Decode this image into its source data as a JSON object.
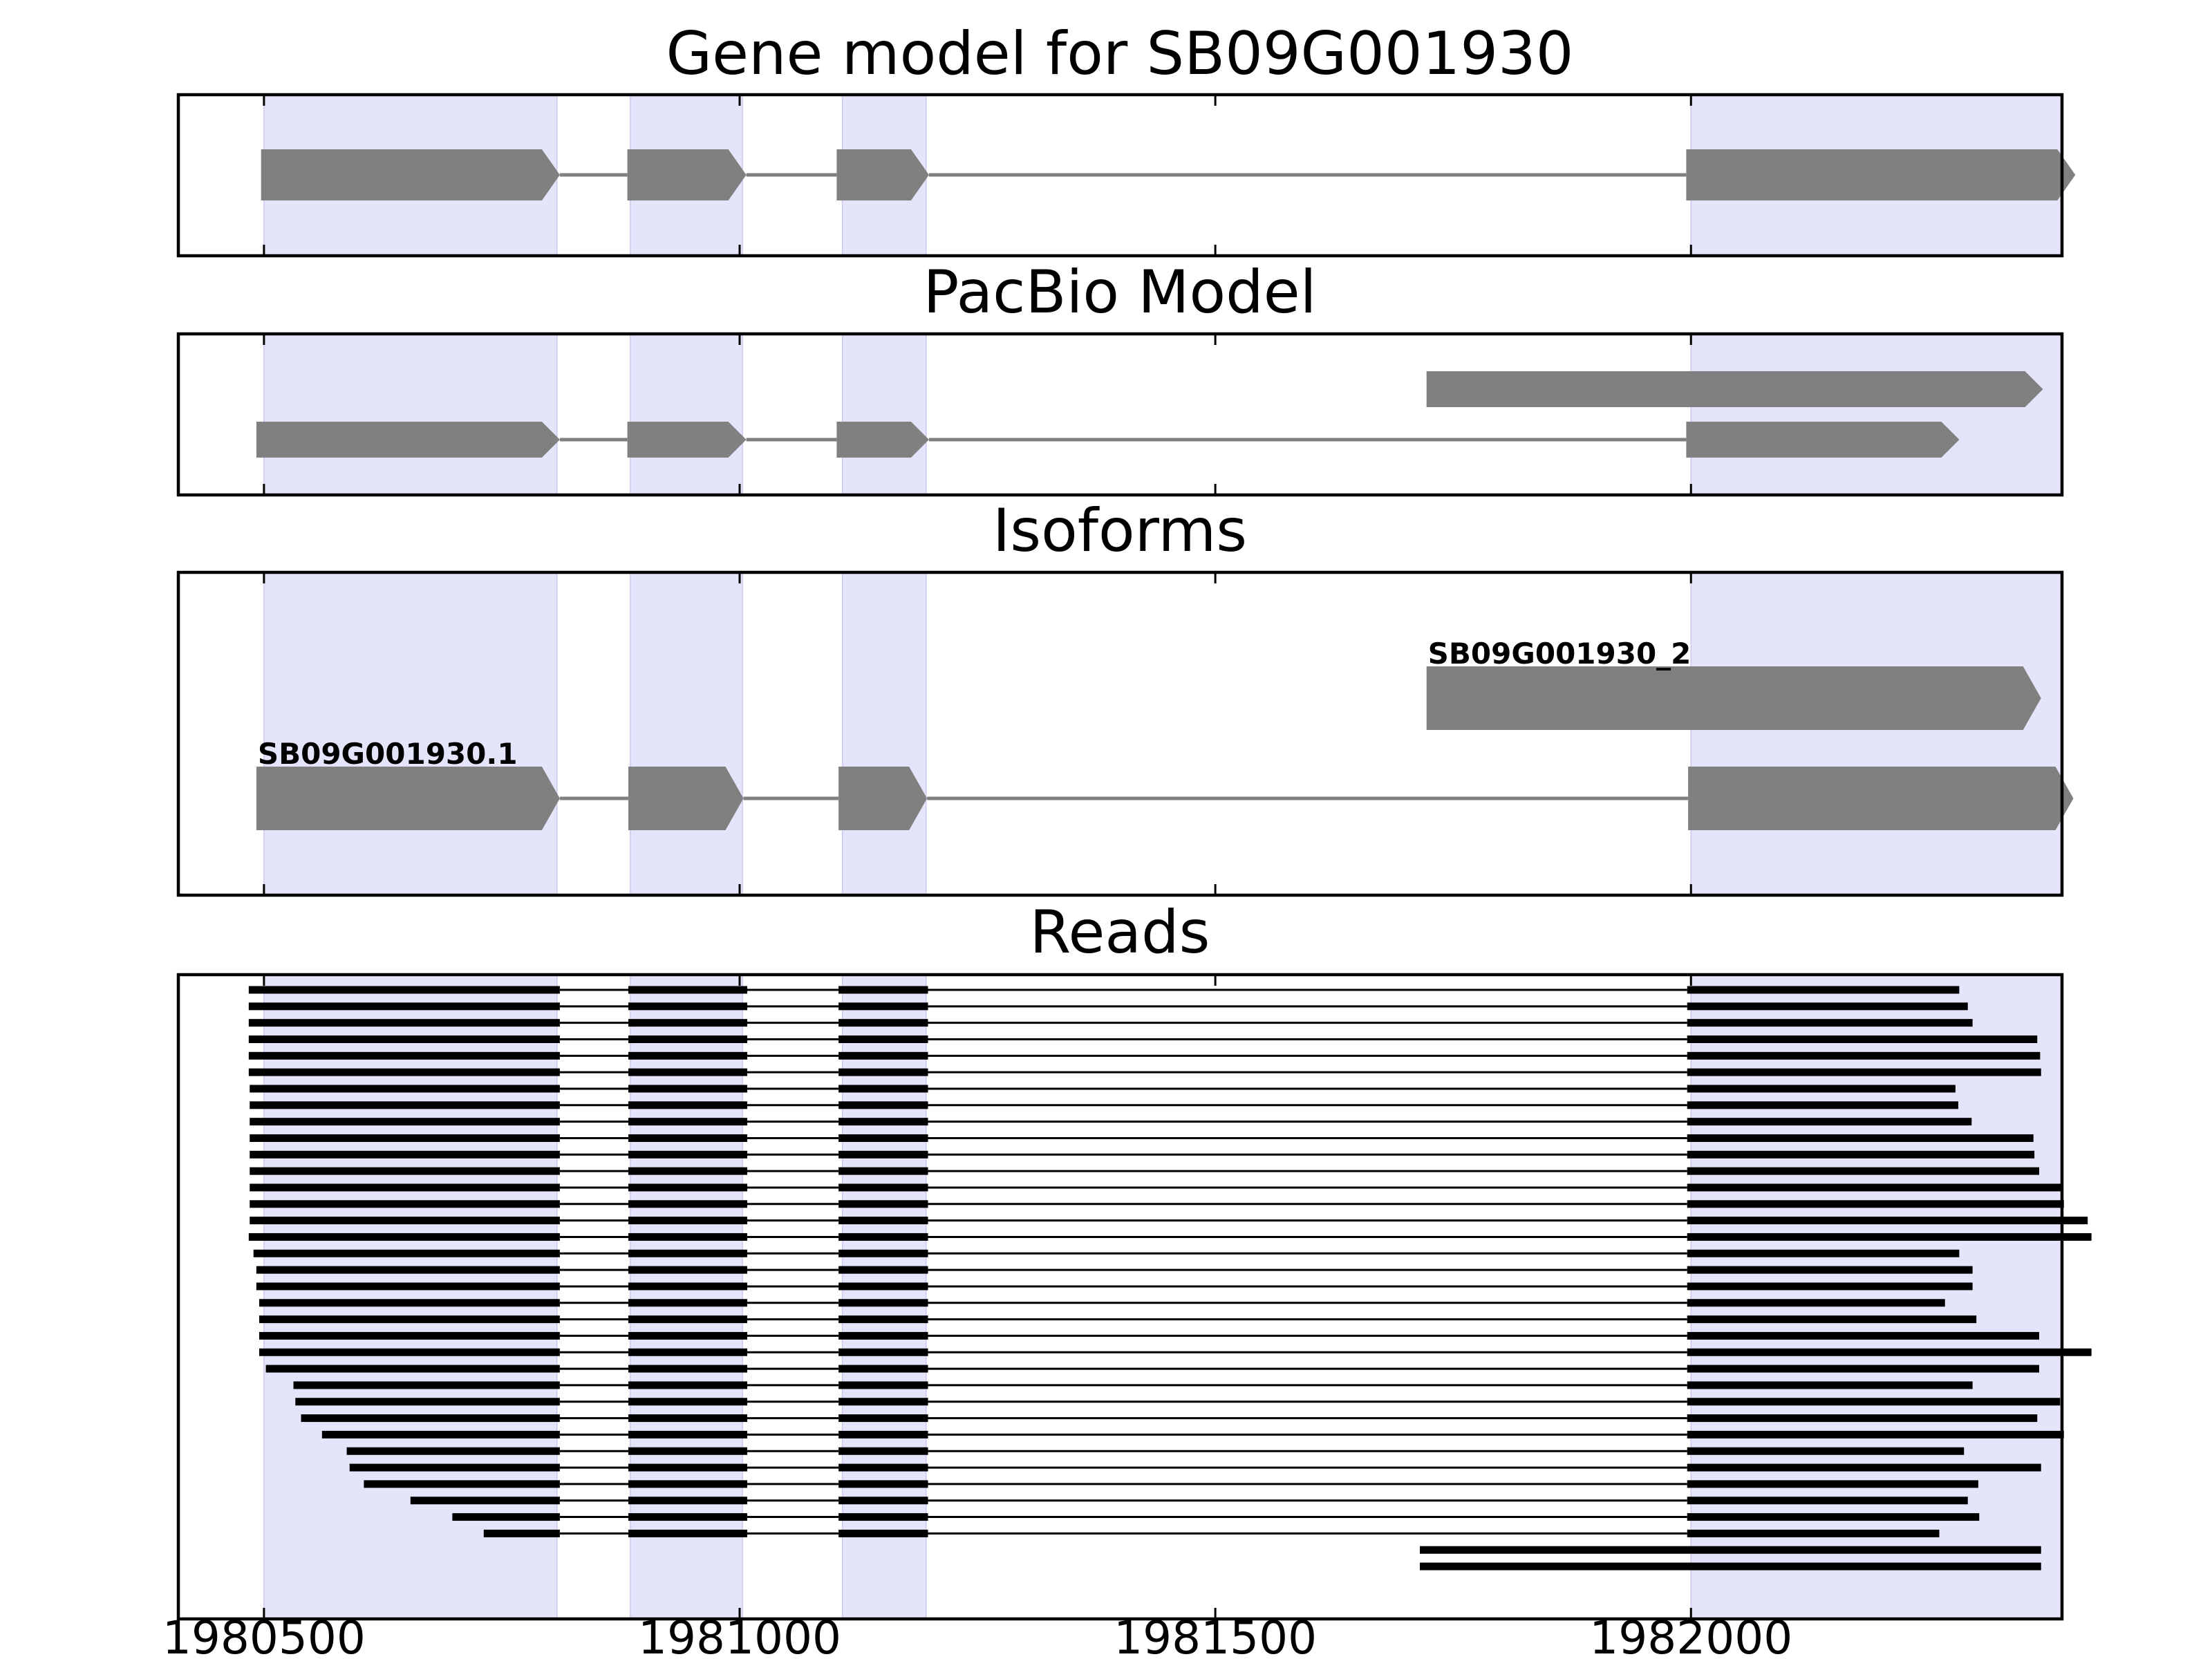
{
  "chart_data": {
    "type": "gene-track",
    "xlim": [
      1980410,
      1982390
    ],
    "x_ticks": [
      {
        "value": 1980500,
        "label": "1980500"
      },
      {
        "value": 1981000,
        "label": "1981000"
      },
      {
        "value": 1981500,
        "label": "1981500"
      },
      {
        "value": 1982000,
        "label": "1982000"
      }
    ],
    "highlight_color": "#e4e4fb",
    "feature_color": "#808080",
    "read_color": "#000000",
    "highlight_regions": [
      [
        1980500,
        1980808
      ],
      [
        1980885,
        1981003
      ],
      [
        1981108,
        1981196
      ],
      [
        1982000,
        1982400
      ]
    ],
    "panels": [
      {
        "key": "gene",
        "title": "Gene model for SB09G001930",
        "tracks": [
          {
            "label": "",
            "exons": [
              [
                1980497,
                1980811
              ],
              [
                1980882,
                1981007
              ],
              [
                1981102,
                1981199
              ],
              [
                1981995,
                1982404
              ]
            ]
          }
        ]
      },
      {
        "key": "pacbio",
        "title": "PacBio Model",
        "tracks": [
          {
            "label": "",
            "exons": [
              [
                1981722,
                1982370
              ]
            ]
          },
          {
            "label": "",
            "exons": [
              [
                1980492,
                1980811
              ],
              [
                1980882,
                1981007
              ],
              [
                1981102,
                1981199
              ],
              [
                1981995,
                1982282
              ]
            ]
          }
        ]
      },
      {
        "key": "isoforms",
        "title": "Isoforms",
        "tracks": [
          {
            "label": "SB09G001930_2",
            "exons": [
              [
                1981722,
                1982368
              ]
            ]
          },
          {
            "label": "SB09G001930.1",
            "exons": [
              [
                1980492,
                1980811
              ],
              [
                1980883,
                1981004
              ],
              [
                1981104,
                1981197
              ],
              [
                1981997,
                1982402
              ]
            ]
          }
        ]
      },
      {
        "key": "reads",
        "title": "Reads",
        "reads": [
          {
            "start": 1980484,
            "end": 1982282
          },
          {
            "start": 1980484,
            "end": 1982291
          },
          {
            "start": 1980484,
            "end": 1982296
          },
          {
            "start": 1980484,
            "end": 1982364
          },
          {
            "start": 1980484,
            "end": 1982367
          },
          {
            "start": 1980484,
            "end": 1982368
          },
          {
            "start": 1980485,
            "end": 1982278
          },
          {
            "start": 1980485,
            "end": 1982281
          },
          {
            "start": 1980485,
            "end": 1982295
          },
          {
            "start": 1980485,
            "end": 1982360
          },
          {
            "start": 1980485,
            "end": 1982361
          },
          {
            "start": 1980485,
            "end": 1982366
          },
          {
            "start": 1980485,
            "end": 1982391
          },
          {
            "start": 1980485,
            "end": 1982392
          },
          {
            "start": 1980485,
            "end": 1982417
          },
          {
            "start": 1980484,
            "end": 1982421
          },
          {
            "start": 1980489,
            "end": 1982282
          },
          {
            "start": 1980492,
            "end": 1982296
          },
          {
            "start": 1980492,
            "end": 1982296
          },
          {
            "start": 1980495,
            "end": 1982267
          },
          {
            "start": 1980495,
            "end": 1982300
          },
          {
            "start": 1980495,
            "end": 1982366
          },
          {
            "start": 1980495,
            "end": 1982421
          },
          {
            "start": 1980502,
            "end": 1982366
          },
          {
            "start": 1980531,
            "end": 1982296
          },
          {
            "start": 1980533,
            "end": 1982388
          },
          {
            "start": 1980539,
            "end": 1982364
          },
          {
            "start": 1980561,
            "end": 1982392
          },
          {
            "start": 1980587,
            "end": 1982287
          },
          {
            "start": 1980590,
            "end": 1982368
          },
          {
            "start": 1980605,
            "end": 1982302
          },
          {
            "start": 1980654,
            "end": 1982291
          },
          {
            "start": 1980698,
            "end": 1982303
          },
          {
            "start": 1980731,
            "end": 1982261
          },
          {
            "start": 1981715,
            "end": 1982368
          },
          {
            "start": 1981715,
            "end": 1982368
          }
        ]
      }
    ]
  }
}
